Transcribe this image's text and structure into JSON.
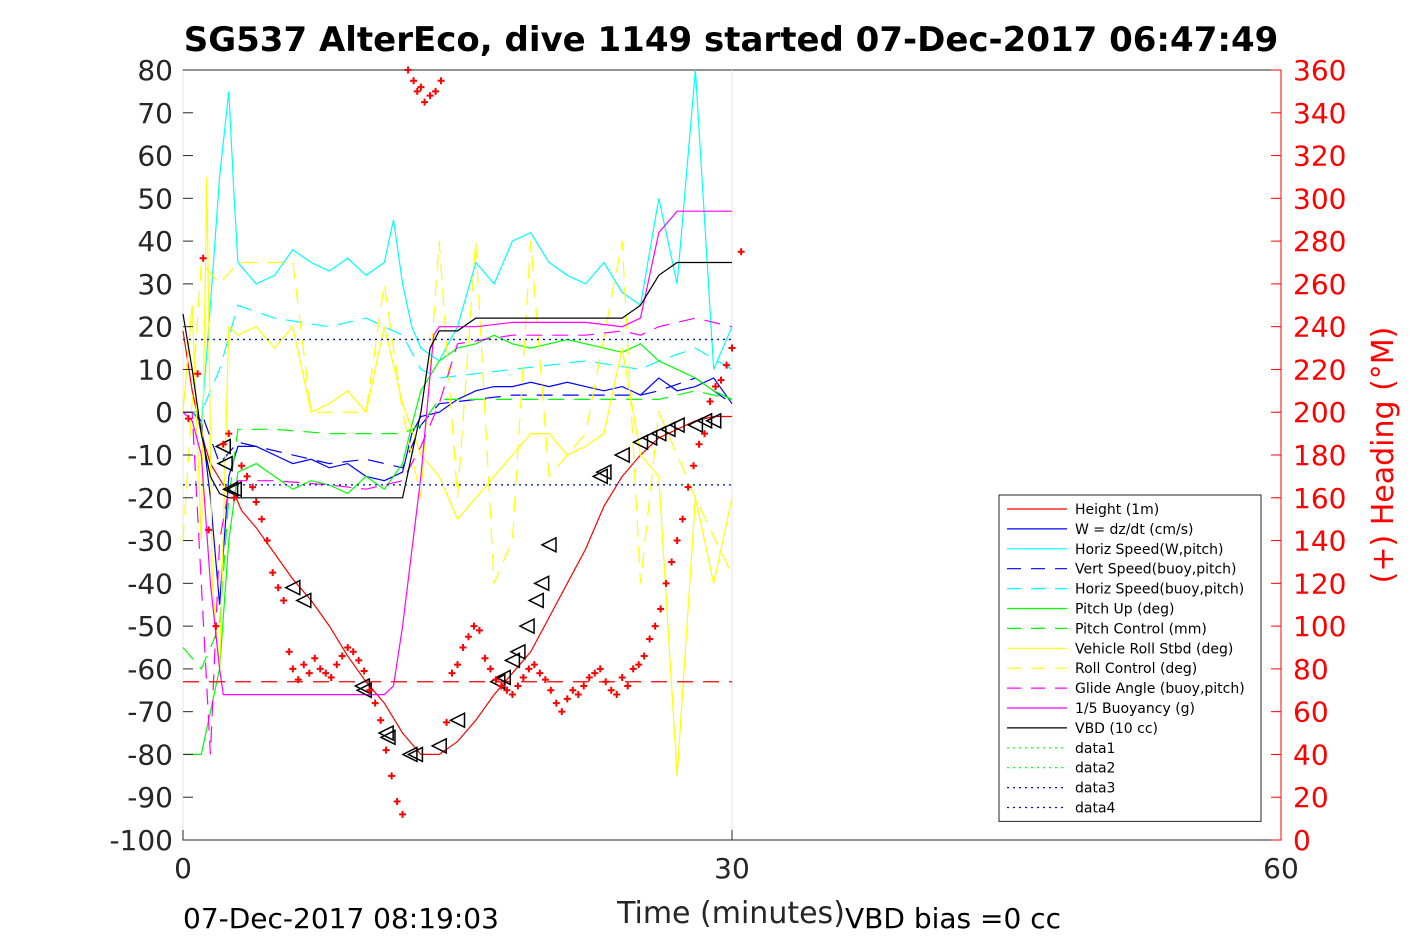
{
  "chart_data": {
    "type": "line",
    "title": "SG537 AlterEco, dive 1149 started 07-Dec-2017 06:47:49",
    "xlabel": "Time (minutes)",
    "ylabel_right": "(+) Heading (°M)",
    "footer_left": "07-Dec-2017 08:19:03",
    "footer_right": "VBD bias =0 cc",
    "xlim": [
      0,
      60
    ],
    "ylim": [
      -100,
      80
    ],
    "y2lim": [
      0,
      360
    ],
    "x_ticks": [
      "0",
      "30",
      "60"
    ],
    "y_ticks": [
      "80",
      "70",
      "60",
      "50",
      "40",
      "30",
      "20",
      "10",
      "0",
      "-10",
      "-20",
      "-30",
      "-40",
      "-50",
      "-60",
      "-70",
      "-80",
      "-90",
      "-100"
    ],
    "y2_ticks": [
      "360",
      "340",
      "320",
      "300",
      "280",
      "260",
      "240",
      "220",
      "200",
      "180",
      "160",
      "140",
      "120",
      "100",
      "80",
      "60",
      "40",
      "20",
      "0"
    ],
    "grid": "x-only",
    "legend_position": "lower-right",
    "legend": [
      {
        "label": "Height (1m)",
        "color": "#ff0000",
        "dash": "solid"
      },
      {
        "label": "W = dz/dt (cm/s)",
        "color": "#0000ff",
        "dash": "solid"
      },
      {
        "label": "Horiz Speed(W,pitch)",
        "color": "#00ffff",
        "dash": "solid"
      },
      {
        "label": "Vert Speed(buoy,pitch)",
        "color": "#0000ff",
        "dash": "dashed"
      },
      {
        "label": "Horiz Speed(buoy,pitch)",
        "color": "#00ffff",
        "dash": "dashed"
      },
      {
        "label": "Pitch Up (deg)",
        "color": "#00ff00",
        "dash": "solid"
      },
      {
        "label": "Pitch Control (mm)",
        "color": "#00ff00",
        "dash": "dashed"
      },
      {
        "label": "Vehicle Roll Stbd (deg)",
        "color": "#ffff00",
        "dash": "solid"
      },
      {
        "label": "Roll Control (deg)",
        "color": "#ffff00",
        "dash": "dashed"
      },
      {
        "label": "Glide Angle (buoy,pitch)",
        "color": "#ff00ff",
        "dash": "dashed"
      },
      {
        "label": "1/5 Buoyancy (g)",
        "color": "#ff00ff",
        "dash": "solid"
      },
      {
        "label": "VBD (10 cc)",
        "color": "#000000",
        "dash": "solid"
      },
      {
        "label": "data1",
        "color": "#00ff00",
        "dash": "dotted"
      },
      {
        "label": "data2",
        "color": "#00ff00",
        "dash": "dotted"
      },
      {
        "label": "data3",
        "color": "#0000ff",
        "dash": "dotted"
      },
      {
        "label": "data4",
        "color": "#0000ff",
        "dash": "dotted"
      }
    ],
    "series": [
      {
        "name": "Height (1m)",
        "color": "#ff0000",
        "dash": "solid",
        "x": [
          0,
          0.5,
          1.0,
          1.5,
          2.2,
          2.8,
          3.2,
          4,
          5,
          6,
          7,
          8,
          9,
          10,
          11,
          12,
          13,
          14,
          15,
          16,
          17,
          18,
          19,
          20,
          21,
          22,
          23,
          24,
          25,
          26,
          27,
          28,
          29,
          30
        ],
        "y": [
          19,
          5,
          -5,
          -12,
          -17,
          -19,
          -23,
          -27,
          -33,
          -39,
          -44,
          -50,
          -57,
          -63,
          -68,
          -75,
          -80,
          -80,
          -77,
          -72,
          -66,
          -61,
          -56,
          -48,
          -40,
          -32,
          -22,
          -15,
          -10,
          -6,
          -4,
          -2,
          -1,
          -1
        ]
      },
      {
        "name": "W = dz/dt (cm/s)",
        "color": "#0000ff",
        "dash": "solid",
        "x": [
          0,
          0.5,
          1.0,
          1.5,
          2.0,
          2.5,
          3,
          4,
          5,
          6,
          7,
          8,
          9,
          10,
          11,
          12,
          12.5,
          13,
          14,
          15,
          16,
          17,
          18,
          19,
          20,
          21,
          22,
          23,
          24,
          25,
          26,
          27,
          28,
          29,
          30
        ],
        "y": [
          0,
          0,
          -2,
          -20,
          -45,
          -15,
          -8,
          -8,
          -10,
          -12,
          -11,
          -13,
          -12,
          -15,
          -16,
          -14,
          -5,
          -1,
          0,
          3,
          5,
          6,
          6,
          7,
          6,
          7,
          6,
          5,
          6,
          4,
          8,
          5,
          6,
          8,
          2
        ]
      },
      {
        "name": "Horiz Speed(W,pitch)",
        "color": "#00ffff",
        "dash": "solid",
        "x": [
          0,
          0.5,
          1.0,
          1.5,
          2.0,
          2.5,
          2.8,
          3,
          4,
          5,
          6,
          7,
          8,
          9,
          10,
          11,
          11.5,
          12,
          12.5,
          13,
          14,
          15,
          16,
          17,
          18,
          19,
          20,
          21,
          22,
          23,
          24,
          25,
          26,
          27,
          28,
          29,
          30
        ],
        "y": [
          0,
          0,
          -3,
          25,
          55,
          75,
          50,
          35,
          30,
          32,
          38,
          35,
          33,
          36,
          32,
          35,
          45,
          30,
          20,
          15,
          12,
          20,
          35,
          30,
          40,
          42,
          35,
          32,
          30,
          35,
          28,
          25,
          50,
          30,
          80,
          10,
          20
        ]
      },
      {
        "name": "Vert Speed(buoy,pitch)",
        "color": "#0000ff",
        "dash": "dashed",
        "x": [
          0,
          1,
          2,
          3,
          5,
          8,
          10,
          12,
          13,
          14,
          18,
          22,
          25,
          26,
          28,
          30
        ],
        "y": [
          0,
          0,
          -12,
          -7,
          -9,
          -12,
          -11,
          -13,
          -3,
          2,
          4,
          4,
          4,
          5,
          8,
          2
        ]
      },
      {
        "name": "Horiz Speed(buoy,pitch)",
        "color": "#00ffff",
        "dash": "dashed",
        "x": [
          0,
          1,
          2,
          3,
          5,
          8,
          10,
          12,
          13,
          14,
          18,
          22,
          25,
          26,
          28,
          30
        ],
        "y": [
          0,
          0,
          10,
          25,
          22,
          20,
          22,
          18,
          10,
          8,
          10,
          12,
          10,
          12,
          15,
          10
        ]
      },
      {
        "name": "Pitch Up (deg)",
        "color": "#00ff00",
        "dash": "solid",
        "x": [
          0,
          0.5,
          1.0,
          1.5,
          2.0,
          2.5,
          3,
          4,
          5,
          6,
          7,
          8,
          9,
          10,
          11,
          12,
          12.5,
          13,
          14,
          15,
          16,
          17,
          18,
          19,
          20,
          21,
          22,
          23,
          24,
          25,
          26,
          27,
          28,
          29,
          30
        ],
        "y": [
          -80,
          -80,
          -80,
          -70,
          -60,
          -30,
          -14,
          -12,
          -15,
          -18,
          -16,
          -17,
          -19,
          -15,
          -18,
          -12,
          -3,
          5,
          12,
          15,
          16,
          18,
          16,
          15,
          16,
          17,
          16,
          15,
          14,
          16,
          12,
          10,
          8,
          5,
          3
        ]
      },
      {
        "name": "Pitch Control (mm)",
        "color": "#00ff00",
        "dash": "dashed",
        "x": [
          0,
          1,
          2,
          2.5,
          3,
          5,
          8,
          10,
          12,
          13,
          14,
          18,
          22,
          25,
          26,
          28,
          30
        ],
        "y": [
          -55,
          -60,
          -50,
          -20,
          -4,
          -4,
          -5,
          -5,
          -5,
          -3,
          3,
          3,
          3,
          3,
          3,
          5,
          3
        ]
      },
      {
        "name": "Vehicle Roll Stbd (deg)",
        "color": "#ffff00",
        "dash": "solid",
        "x": [
          0,
          0.5,
          1.0,
          1.3,
          1.6,
          2.0,
          2.5,
          3,
          4,
          5,
          6,
          7,
          8,
          9,
          10,
          11,
          12,
          13,
          14,
          15,
          16,
          17,
          18,
          19,
          20,
          21,
          22,
          23,
          24,
          25,
          26,
          27,
          28,
          29,
          30
        ],
        "y": [
          0,
          25,
          -30,
          55,
          -40,
          -60,
          20,
          18,
          20,
          15,
          20,
          0,
          2,
          5,
          0,
          20,
          2,
          -10,
          -15,
          -25,
          -20,
          -15,
          -10,
          -5,
          -5,
          -10,
          -8,
          -5,
          15,
          -10,
          -15,
          -85,
          -20,
          -40,
          -20
        ]
      },
      {
        "name": "Roll Control (deg)",
        "color": "#ffff00",
        "dash": "dashed",
        "x": [
          0,
          1,
          2,
          3,
          4,
          6,
          7,
          8,
          10,
          11,
          12,
          13,
          14,
          15,
          16,
          17,
          18,
          19,
          20,
          22,
          24,
          25,
          26,
          28,
          30
        ],
        "y": [
          -30,
          35,
          30,
          35,
          35,
          35,
          0,
          0,
          0,
          30,
          0,
          -20,
          40,
          -20,
          40,
          -40,
          -30,
          40,
          -15,
          -5,
          40,
          -40,
          0,
          -20,
          -38
        ]
      },
      {
        "name": "Glide Angle (buoy,pitch)",
        "color": "#ff00ff",
        "dash": "dashed",
        "x": [
          0,
          0.5,
          1.0,
          1.5,
          2.0,
          2.5,
          3,
          5,
          8,
          10,
          11,
          12,
          13,
          14,
          15,
          18,
          22,
          24,
          25,
          26,
          28,
          30
        ],
        "y": [
          0,
          0,
          -40,
          -80,
          -30,
          -18,
          -16,
          -16,
          -17,
          -18,
          -17,
          -16,
          -8,
          2,
          16,
          18,
          18,
          19,
          18,
          20,
          22,
          20
        ]
      },
      {
        "name": "1/5 Buoyancy (g)",
        "color": "#ff00ff",
        "dash": "solid",
        "x": [
          0,
          0.5,
          1.0,
          1.5,
          2.0,
          2.2,
          3,
          5,
          8,
          10,
          11,
          11.5,
          12,
          13,
          13.7,
          14,
          16,
          18,
          20,
          22,
          24,
          25,
          26,
          27,
          28,
          29,
          30
        ],
        "y": [
          0,
          -2,
          -10,
          -40,
          -60,
          -66,
          -66,
          -66,
          -66,
          -66,
          -66,
          -64,
          -50,
          -15,
          18,
          20,
          20,
          21,
          21,
          21,
          20,
          22,
          42,
          47,
          47,
          47,
          47
        ]
      },
      {
        "name": "VBD (10 cc)",
        "color": "#000000",
        "dash": "solid",
        "x": [
          0,
          0.5,
          1.0,
          1.5,
          2.0,
          2.5,
          3,
          5,
          8,
          10,
          11,
          12,
          13,
          13.5,
          14,
          15,
          16,
          18,
          20,
          22,
          24,
          25,
          26,
          27,
          28,
          29,
          30
        ],
        "y": [
          23,
          10,
          -5,
          -15,
          -19,
          -20,
          -20,
          -20,
          -20,
          -20,
          -20,
          -20,
          0,
          15,
          19,
          19,
          22,
          22,
          22,
          22,
          22,
          25,
          32,
          35,
          35,
          35,
          35
        ]
      },
      {
        "name": "data1",
        "color": "#00ff00",
        "dash": "dotted",
        "x": [
          0,
          30
        ],
        "y": [
          17,
          17
        ]
      },
      {
        "name": "data2",
        "color": "#00ff00",
        "dash": "dotted",
        "x": [
          0,
          30
        ],
        "y": [
          -17,
          -17
        ]
      },
      {
        "name": "data3",
        "color": "#0000ff",
        "dash": "dotted",
        "x": [
          0,
          30
        ],
        "y": [
          17,
          17
        ]
      },
      {
        "name": "data4",
        "color": "#0000ff",
        "dash": "dotted",
        "x": [
          0,
          30
        ],
        "y": [
          -17,
          -17
        ]
      }
    ],
    "target_depth": {
      "y": -63,
      "x": [
        0,
        30
      ],
      "color": "#ff0000",
      "dash": "dashed"
    },
    "markers": {
      "color": "#000000",
      "x": [
        2.2,
        2.3,
        2.6,
        2.8,
        6.0,
        6.6,
        9.8,
        9.9,
        11.1,
        11.2,
        12.4,
        12.7,
        14.0,
        15.0,
        17.2,
        17.5,
        18.0,
        18.3,
        18.8,
        19.3,
        19.6,
        20.0,
        22.8,
        23.0,
        24.0,
        25.0,
        25.5,
        26.0,
        26.5,
        27.0,
        28.0,
        28.5,
        29.0
      ],
      "y": [
        -8,
        -12,
        -18,
        -18,
        -41,
        -44,
        -64,
        -65,
        -75,
        -76,
        -80,
        -80,
        -78,
        -72,
        -63,
        -62,
        -58,
        -56,
        -50,
        -44,
        -40,
        -31,
        -15,
        -14,
        -10,
        -7,
        -6,
        -5,
        -4,
        -3,
        -3,
        -2,
        -2
      ]
    },
    "heading": {
      "color": "#ff0000",
      "x": [
        0.3,
        0.8,
        1.1,
        1.4,
        1.8,
        2.2,
        2.5,
        2.8,
        3.2,
        3.5,
        3.8,
        4.0,
        4.3,
        4.6,
        4.9,
        5.2,
        5.5,
        5.8,
        6.0,
        6.3,
        6.6,
        6.9,
        7.2,
        7.5,
        7.8,
        8.1,
        8.4,
        8.7,
        9.0,
        9.3,
        9.6,
        9.9,
        10.2,
        10.5,
        10.8,
        11.1,
        11.4,
        11.7,
        12.0,
        12.3,
        12.6,
        12.8,
        13.0,
        13.2,
        13.5,
        13.8,
        14.1,
        14.4,
        14.7,
        15.0,
        15.3,
        15.6,
        15.9,
        16.2,
        16.5,
        16.8,
        17.1,
        17.4,
        17.7,
        18.0,
        18.3,
        18.6,
        18.9,
        19.2,
        19.5,
        19.8,
        20.1,
        20.4,
        20.7,
        21.0,
        21.3,
        21.6,
        21.9,
        22.2,
        22.5,
        22.8,
        23.1,
        23.4,
        23.7,
        24.0,
        24.3,
        24.6,
        24.9,
        25.2,
        25.5,
        25.8,
        26.1,
        26.4,
        26.7,
        27.0,
        27.3,
        27.6,
        27.9,
        28.2,
        28.5,
        28.8,
        29.1,
        29.4,
        29.7,
        30.0,
        30.5
      ],
      "y": [
        197,
        218,
        272,
        145,
        100,
        185,
        190,
        160,
        175,
        170,
        165,
        158,
        150,
        140,
        125,
        118,
        112,
        88,
        80,
        75,
        82,
        78,
        85,
        80,
        78,
        76,
        82,
        86,
        90,
        88,
        84,
        79,
        70,
        64,
        56,
        42,
        30,
        18,
        12,
        360,
        355,
        350,
        352,
        345,
        348,
        350,
        355,
        55,
        78,
        82,
        90,
        95,
        100,
        98,
        85,
        80,
        75,
        72,
        70,
        68,
        72,
        76,
        80,
        82,
        78,
        75,
        70,
        64,
        60,
        66,
        70,
        68,
        72,
        76,
        78,
        80,
        74,
        70,
        68,
        76,
        72,
        80,
        82,
        86,
        94,
        100,
        108,
        120,
        130,
        140,
        150,
        165,
        175,
        185,
        190,
        205,
        212,
        215,
        222,
        230,
        275
      ]
    }
  }
}
